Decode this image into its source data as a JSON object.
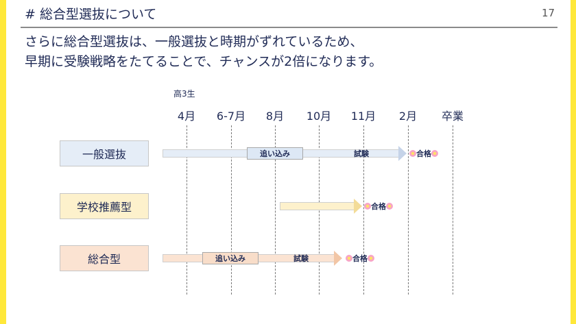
{
  "title": "# 総合型選抜について",
  "page_number": "17",
  "lead_lines": [
    "さらに総合型選抜は、一般選抜と時期がずれているため、",
    "早期に受験戦略をたてることで、チャンスが2倍になります。"
  ],
  "grade_note": "高3生",
  "months": [
    "4月",
    "6-7月",
    "8月",
    "10月",
    "11月",
    "2月",
    "卒業"
  ],
  "rows": [
    {
      "label": "一般選抜",
      "tag": "追い込み",
      "exam": "試験",
      "pass": "合格",
      "color": "#e5edf7"
    },
    {
      "label": "学校推薦型",
      "pass": "合格",
      "color": "#fdf1cc"
    },
    {
      "label": "総合型",
      "tag": "追い込み",
      "exam": "試験",
      "pass": "合格",
      "color": "#fbe3d2"
    }
  ],
  "icons": {
    "pass_marker": "flower-icon"
  }
}
